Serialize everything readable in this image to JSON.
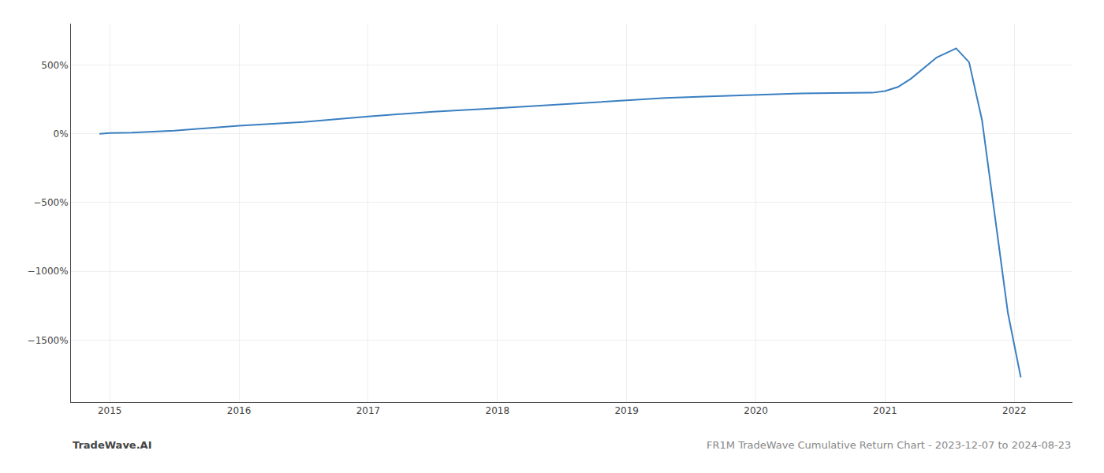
{
  "chart_data": {
    "type": "line",
    "x": [
      2014.92,
      2015.0,
      2015.17,
      2015.5,
      2016.0,
      2016.5,
      2017.0,
      2017.5,
      2018.0,
      2018.5,
      2019.0,
      2019.3,
      2019.6,
      2020.0,
      2020.3,
      2020.6,
      2020.9,
      2021.0,
      2021.1,
      2021.2,
      2021.4,
      2021.55,
      2021.65,
      2021.75,
      2021.85,
      2021.95,
      2022.05
    ],
    "values": [
      0,
      5,
      8,
      22,
      58,
      85,
      125,
      160,
      185,
      215,
      245,
      260,
      270,
      285,
      292,
      296,
      298,
      310,
      340,
      400,
      555,
      620,
      520,
      100,
      -600,
      -1300,
      -1770
    ],
    "color": "#3a7fc1",
    "xlim": [
      2014.7,
      2022.45
    ],
    "ylim": [
      -1950,
      800
    ],
    "xticks": [
      2015,
      2016,
      2017,
      2018,
      2019,
      2020,
      2021,
      2022
    ],
    "yticks": [
      {
        "value": 500,
        "label": "500%"
      },
      {
        "value": 0,
        "label": "0%"
      },
      {
        "value": -500,
        "label": "−500%"
      },
      {
        "value": -1000,
        "label": "−1000%"
      },
      {
        "value": -1500,
        "label": "−1500%"
      }
    ],
    "grid": true,
    "annotations": [
      {
        "text": "TradeWave.AI"
      },
      {
        "text": "FR1M TradeWave Cumulative Return Chart - 2023-12-07 to 2024-08-23"
      }
    ]
  }
}
